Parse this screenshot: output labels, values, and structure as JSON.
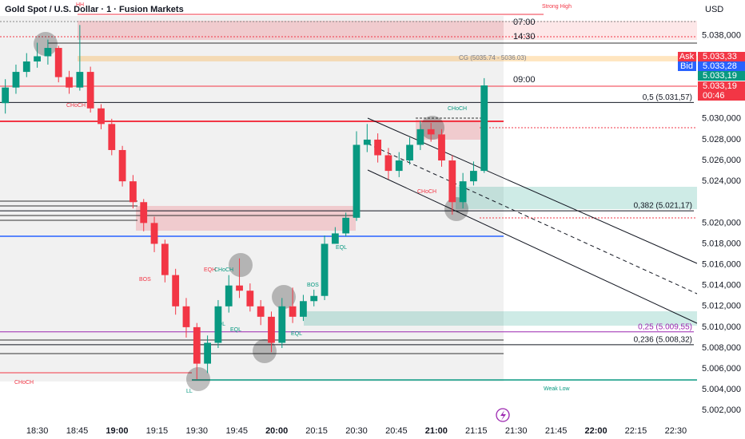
{
  "chart_data": {
    "type": "candlestick",
    "title": "Gold Spot / U.S. Dollar · 1 · Fusion Markets",
    "currency": "USD",
    "up_color": "#089981",
    "down_color": "#f23645",
    "xlim": [
      "18:16",
      "22:38"
    ],
    "xticks": [
      "18:30",
      "18:45",
      "19:00",
      "19:15",
      "19:30",
      "19:45",
      "20:00",
      "20:15",
      "20:30",
      "20:45",
      "21:00",
      "21:15",
      "21:30",
      "21:45",
      "22:00",
      "22:15",
      "22:30"
    ],
    "ylim": [
      5000.8,
      5041.4
    ],
    "yticks": [
      {
        "value": 5038,
        "label": "5.038,000"
      },
      {
        "value": 5030,
        "label": "5.030,000"
      },
      {
        "value": 5028,
        "label": "5.028,000"
      },
      {
        "value": 5026,
        "label": "5.026,000"
      },
      {
        "value": 5024,
        "label": "5.024,000"
      },
      {
        "value": 5020,
        "label": "5.020,000"
      },
      {
        "value": 5018,
        "label": "5.018,000"
      },
      {
        "value": 5016,
        "label": "5.016,000"
      },
      {
        "value": 5014,
        "label": "5.014,000"
      },
      {
        "value": 5012,
        "label": "5.012,000"
      },
      {
        "value": 5010,
        "label": "5.010,000"
      },
      {
        "value": 5008,
        "label": "5.008,000"
      },
      {
        "value": 5006,
        "label": "5.006,000"
      },
      {
        "value": 5004,
        "label": "5.004,000"
      },
      {
        "value": 5002,
        "label": "5.002,000"
      }
    ],
    "x": [
      "18:18",
      "18:22",
      "18:26",
      "18:30",
      "18:34",
      "18:38",
      "18:42",
      "18:46",
      "18:50",
      "18:54",
      "18:58",
      "19:02",
      "19:06",
      "19:10",
      "19:14",
      "19:18",
      "19:22",
      "19:26",
      "19:30",
      "19:34",
      "19:38",
      "19:42",
      "19:46",
      "19:50",
      "19:54",
      "19:58",
      "20:02",
      "20:06",
      "20:10",
      "20:14",
      "20:18",
      "20:22",
      "20:26",
      "20:30",
      "20:34",
      "20:38",
      "20:42",
      "20:46",
      "20:50",
      "20:54",
      "20:58",
      "21:02",
      "21:06",
      "21:10",
      "21:14",
      "21:18"
    ],
    "open": [
      5031.5,
      5033,
      5034.5,
      5035.5,
      5036,
      5036.8,
      5034,
      5033,
      5034.5,
      5031,
      5029.5,
      5027,
      5024,
      5022,
      5020,
      5018,
      5015,
      5012,
      5010,
      5006.5,
      5008.5,
      5012,
      5014,
      5013.5,
      5012,
      5011,
      5008.5,
      5012,
      5011,
      5012.5,
      5013,
      5018,
      5019,
      5020.5,
      5027.5,
      5028,
      5026.5,
      5025,
      5026,
      5027.5,
      5029,
      5028.5,
      5026,
      5022,
      5024,
      5025
    ],
    "high": [
      5033.8,
      5035.2,
      5036.3,
      5037.3,
      5037.6,
      5037,
      5034.6,
      5039,
      5035,
      5031.4,
      5030,
      5027.4,
      5024.6,
      5022.3,
      5020.6,
      5018.4,
      5015.6,
      5012.8,
      5010.4,
      5009.2,
      5012.6,
      5015,
      5016.6,
      5014.2,
      5012.6,
      5011.5,
      5012.8,
      5013.8,
      5013.1,
      5013.6,
      5018.8,
      5019.6,
      5021,
      5028.8,
      5029.5,
      5028.6,
      5027.2,
      5026.8,
      5028.2,
      5029.8,
      5029.6,
      5029,
      5026.5,
      5024.8,
      5025.9,
      5033.9
    ],
    "low": [
      5030.5,
      5032.4,
      5034,
      5034.9,
      5035.2,
      5033.5,
      5032.4,
      5032.7,
      5030.6,
      5029,
      5026.5,
      5023.5,
      5021.4,
      5019.2,
      5017.2,
      5014.3,
      5011.2,
      5009,
      5005,
      5005.6,
      5008,
      5011.4,
      5012.8,
      5011.5,
      5010.2,
      5007.6,
      5008,
      5010.4,
      5010.6,
      5012,
      5012.6,
      5018.2,
      5018.7,
      5020.2,
      5026.8,
      5025.8,
      5024.2,
      5024.4,
      5025.6,
      5027,
      5027.8,
      5025.4,
      5020.8,
      5021.4,
      5023.6,
      5024.8
    ],
    "close": [
      5033,
      5034.5,
      5035.5,
      5036,
      5036.8,
      5034,
      5033,
      5034.5,
      5031,
      5029.5,
      5027,
      5024,
      5022,
      5020,
      5018,
      5015,
      5012,
      5010,
      5006.5,
      5008.5,
      5012,
      5014,
      5013.5,
      5012,
      5011,
      5008.5,
      5012,
      5011,
      5012.5,
      5013,
      5018,
      5019,
      5020.5,
      5027.5,
      5028,
      5026.5,
      5025,
      5026,
      5027.5,
      5029,
      5028.5,
      5026,
      5022,
      5024,
      5025,
      5033.2
    ],
    "levels": [
      {
        "label": "0,5 (5.031,57)",
        "value": 5031.57,
        "color": "#131722"
      },
      {
        "label": "0,382 (5.021,17)",
        "value": 5021.17,
        "color": "#131722"
      },
      {
        "label": "0,25 (5.009,55)",
        "value": 5009.55,
        "color": "#9c27b0"
      },
      {
        "label": "0,236 (5.008,32)",
        "value": 5008.32,
        "color": "#131722"
      }
    ],
    "cg": {
      "label": "CG (5035.74 - 5036.03)",
      "range": [
        5035.74,
        5036.03
      ]
    },
    "sessions": [
      "07:00",
      "14:30",
      "09:00"
    ],
    "structure_labels": [
      {
        "text": "Strong High",
        "color": "#f23645"
      },
      {
        "text": "Weak Low",
        "color": "#089981"
      },
      {
        "text": "HH",
        "color": "#f23645"
      },
      {
        "text": "CHoCH",
        "color": "#f23645"
      },
      {
        "text": "CHoCH",
        "color": "#089981"
      },
      {
        "text": "CHoCH",
        "color": "#f23645"
      },
      {
        "text": "CHoCH",
        "color": "#f23645"
      },
      {
        "text": "BOS",
        "color": "#f23645"
      },
      {
        "text": "BOS",
        "color": "#089981"
      },
      {
        "text": "EQH",
        "color": "#f23645"
      },
      {
        "text": "CHoCH",
        "color": "#089981"
      },
      {
        "text": "EQL",
        "color": "#089981"
      },
      {
        "text": "EQL",
        "color": "#089981"
      },
      {
        "text": "EQL",
        "color": "#089981"
      },
      {
        "text": "EQL",
        "color": "#089981"
      },
      {
        "text": "LL",
        "color": "#089981"
      }
    ],
    "price_labels": [
      {
        "tag": "Ask",
        "value": 5033.33,
        "label": "5.033,33",
        "color": "#f23645"
      },
      {
        "tag": "Bid",
        "value": 5033.28,
        "label": "5.033,28",
        "color": "#2962ff"
      },
      {
        "value": 5033.19,
        "label": "5.033,19",
        "color": "#089981"
      },
      {
        "value": 5033.19,
        "label": "5.033,19",
        "color": "#f23645"
      }
    ],
    "countdown": "00:46"
  }
}
